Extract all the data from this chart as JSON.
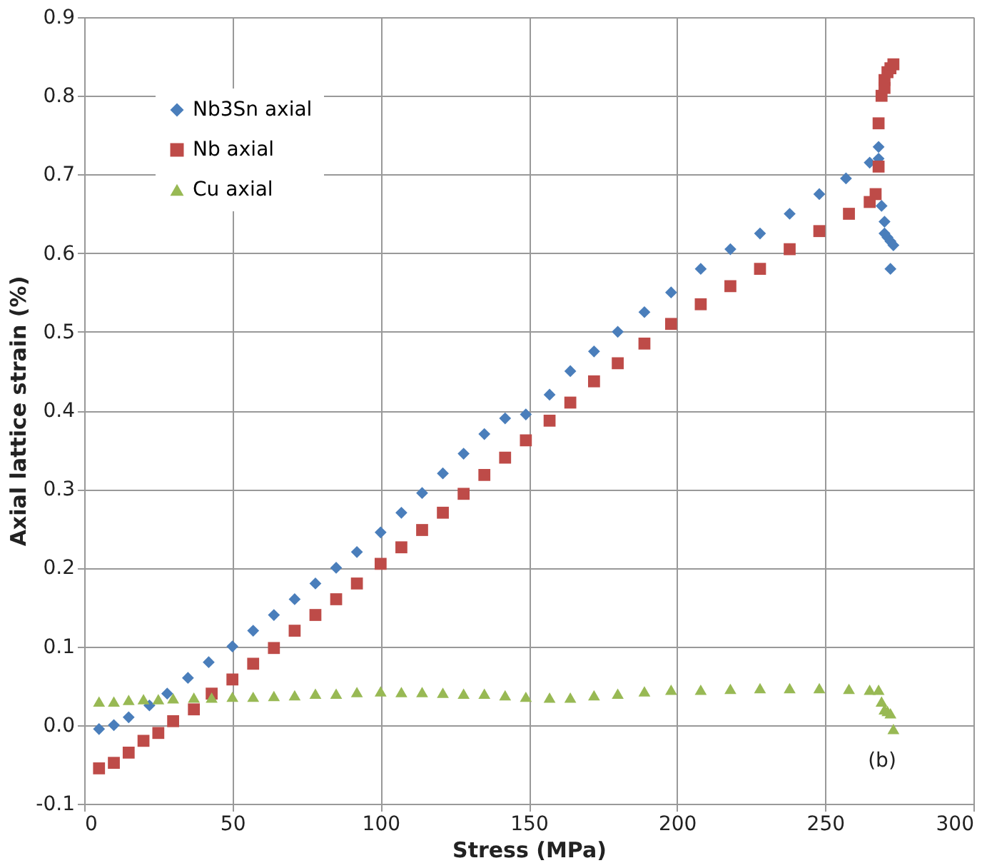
{
  "chart_data": {
    "type": "scatter",
    "xlabel": "Stress (MPa)",
    "ylabel": "Axial lattice strain (%)",
    "xlim": [
      0,
      300
    ],
    "xticks": [
      0,
      50,
      100,
      150,
      200,
      250,
      300
    ],
    "ylim": [
      -0.1,
      0.9
    ],
    "yticks": [
      -0.1,
      {
        "value": 0,
        "label": "0.0"
      },
      0.1,
      0.2,
      0.3,
      0.4,
      0.5,
      0.6,
      0.7,
      0.8,
      0.9
    ],
    "grid": true,
    "legend": "top left",
    "annotations": [
      "(b)"
    ],
    "series": [
      {
        "name": "Nb3Sn axial",
        "color": "#4a7ebb",
        "marker": "diamond",
        "x": [
          5,
          10,
          15,
          22,
          28,
          35,
          42,
          50,
          57,
          64,
          71,
          78,
          85,
          92,
          100,
          107,
          114,
          121,
          128,
          135,
          142,
          149,
          157,
          164,
          172,
          180,
          189,
          198,
          208,
          218,
          228,
          238,
          248,
          257,
          265,
          268,
          268,
          269,
          270,
          270,
          271,
          272,
          273,
          272
        ],
        "values": [
          -0.005,
          0.0,
          0.01,
          0.025,
          0.04,
          0.06,
          0.08,
          0.1,
          0.12,
          0.14,
          0.16,
          0.18,
          0.2,
          0.22,
          0.245,
          0.27,
          0.295,
          0.32,
          0.345,
          0.37,
          0.39,
          0.395,
          0.42,
          0.45,
          0.475,
          0.5,
          0.525,
          0.55,
          0.58,
          0.605,
          0.625,
          0.65,
          0.675,
          0.695,
          0.715,
          0.735,
          0.72,
          0.66,
          0.64,
          0.625,
          0.62,
          0.615,
          0.61,
          0.58
        ]
      },
      {
        "name": "Nb axial",
        "color": "#be4b48",
        "marker": "square",
        "x": [
          5,
          10,
          15,
          20,
          25,
          30,
          37,
          43,
          50,
          57,
          64,
          71,
          78,
          85,
          92,
          100,
          107,
          114,
          121,
          128,
          135,
          142,
          149,
          157,
          164,
          172,
          180,
          189,
          198,
          208,
          218,
          228,
          238,
          248,
          258,
          265,
          267,
          268,
          268,
          269,
          270,
          270,
          271,
          272,
          273
        ],
        "values": [
          -0.055,
          -0.048,
          -0.035,
          -0.02,
          -0.01,
          0.005,
          0.02,
          0.04,
          0.058,
          0.078,
          0.098,
          0.12,
          0.14,
          0.16,
          0.18,
          0.205,
          0.226,
          0.248,
          0.27,
          0.294,
          0.318,
          0.34,
          0.362,
          0.387,
          0.41,
          0.437,
          0.46,
          0.485,
          0.51,
          0.535,
          0.558,
          0.58,
          0.605,
          0.628,
          0.65,
          0.665,
          0.675,
          0.71,
          0.765,
          0.8,
          0.81,
          0.82,
          0.83,
          0.835,
          0.84
        ]
      },
      {
        "name": "Cu axial",
        "color": "#98b954",
        "marker": "triangle",
        "x": [
          5,
          10,
          15,
          20,
          25,
          30,
          37,
          43,
          50,
          57,
          64,
          71,
          78,
          85,
          92,
          100,
          107,
          114,
          121,
          128,
          135,
          142,
          149,
          157,
          164,
          172,
          180,
          189,
          198,
          208,
          218,
          228,
          238,
          248,
          258,
          265,
          268,
          269,
          270,
          271,
          272,
          273
        ],
        "values": [
          0.03,
          0.03,
          0.032,
          0.033,
          0.033,
          0.034,
          0.035,
          0.035,
          0.036,
          0.036,
          0.037,
          0.038,
          0.04,
          0.04,
          0.042,
          0.043,
          0.042,
          0.042,
          0.041,
          0.04,
          0.04,
          0.038,
          0.036,
          0.035,
          0.035,
          0.038,
          0.04,
          0.043,
          0.045,
          0.045,
          0.046,
          0.047,
          0.047,
          0.047,
          0.046,
          0.045,
          0.045,
          0.03,
          0.02,
          0.018,
          0.015,
          -0.005
        ]
      }
    ]
  }
}
